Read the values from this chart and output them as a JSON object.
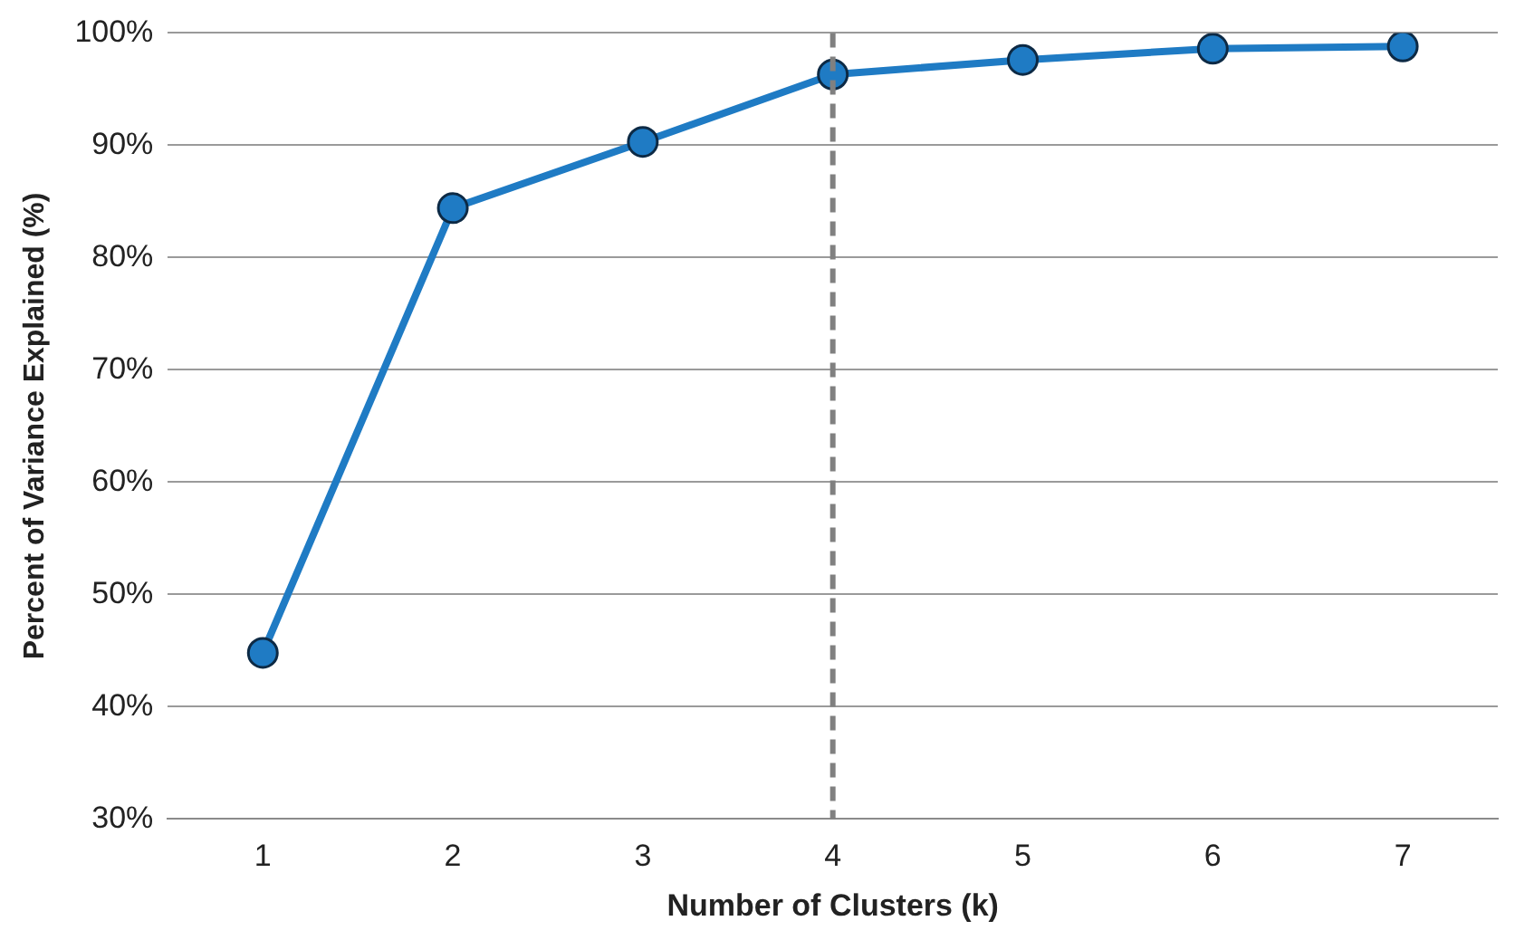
{
  "chart_data": {
    "type": "line",
    "xlabel": "Number of Clusters (k)",
    "ylabel": "Percent of Variance Explained (%)",
    "categories": [
      "1",
      "2",
      "3",
      "4",
      "5",
      "6",
      "7"
    ],
    "series": [
      {
        "color": "#1f7bc4",
        "values": [
          44.8,
          84.4,
          90.3,
          96.3,
          97.6,
          98.6,
          98.8
        ]
      }
    ],
    "ylim": [
      30,
      100
    ],
    "yticks": [
      {
        "value": 30,
        "label": "30%"
      },
      {
        "value": 40,
        "label": "40%"
      },
      {
        "value": 50,
        "label": "50%"
      },
      {
        "value": 60,
        "label": "60%"
      },
      {
        "value": 70,
        "label": "70%"
      },
      {
        "value": 80,
        "label": "80%"
      },
      {
        "value": 90,
        "label": "90%"
      },
      {
        "value": 100,
        "label": "100%"
      }
    ],
    "grid": "y",
    "legend": false,
    "marker": "circle",
    "line_style": "solid",
    "ref_lines": [
      {
        "axis": "x",
        "value": "4",
        "color": "#808080",
        "line_style": "dashed"
      }
    ]
  }
}
